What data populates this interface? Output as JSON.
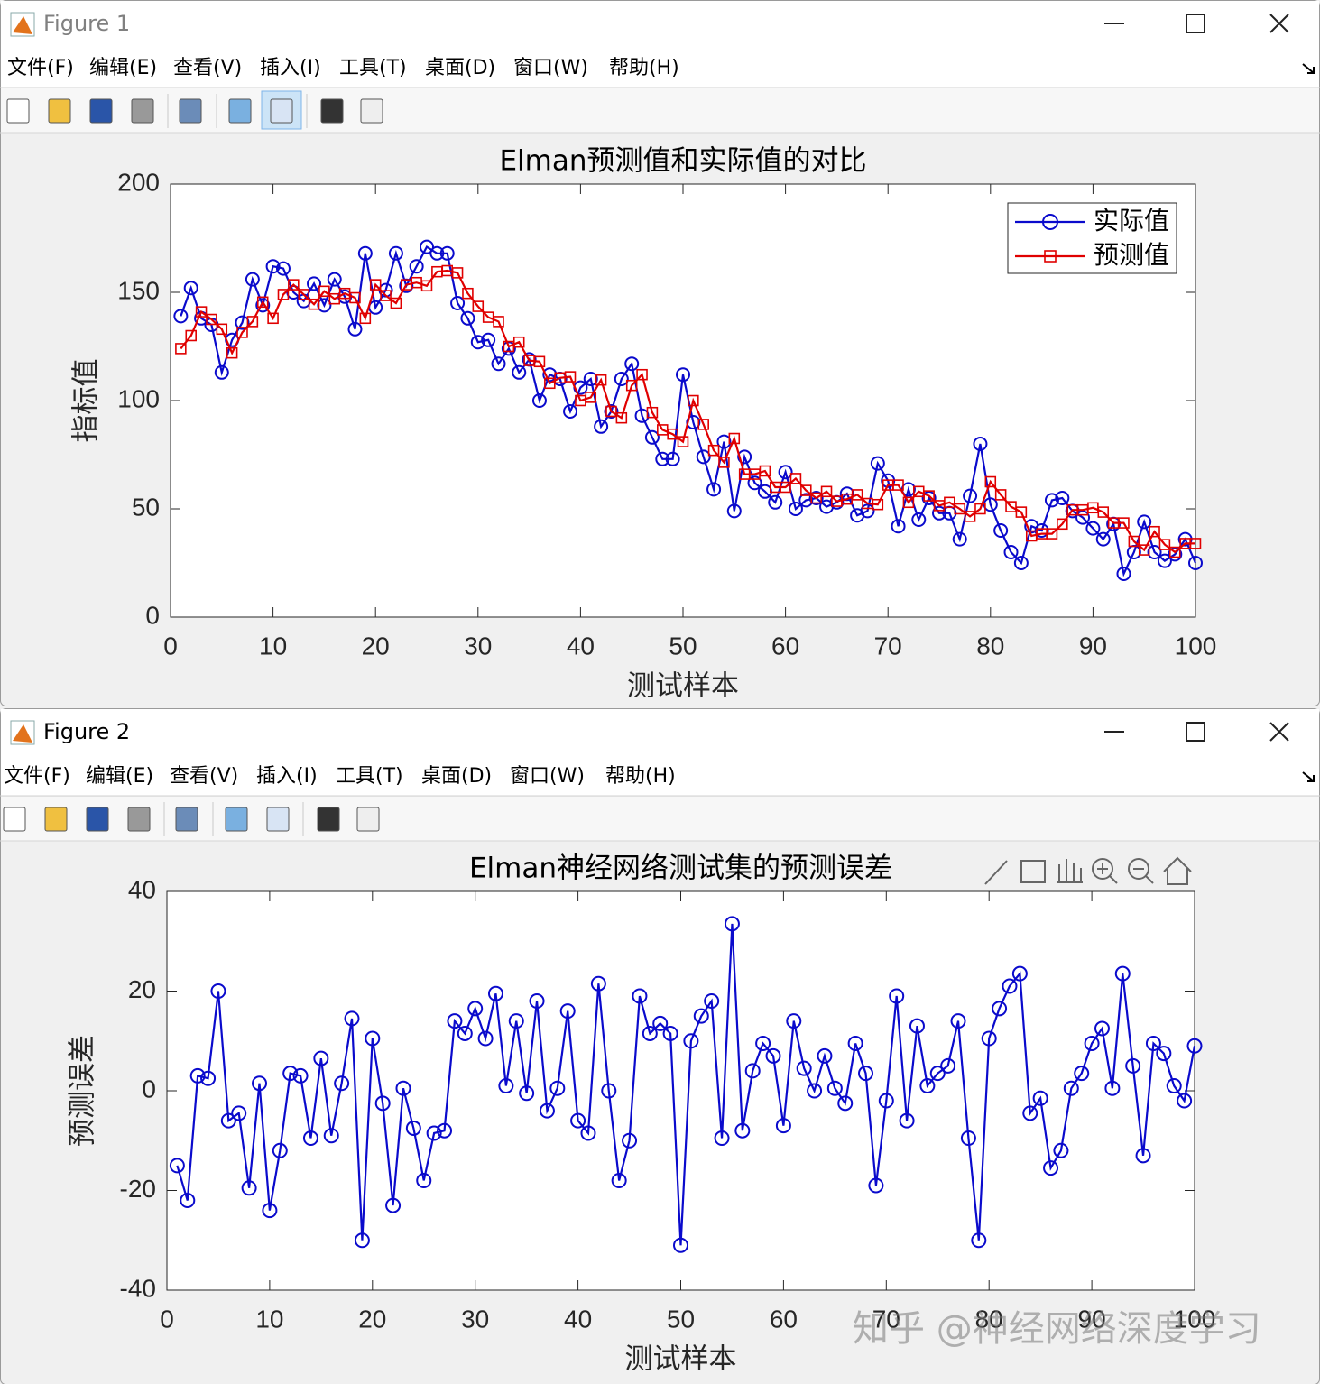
{
  "windows": [
    {
      "title": "Figure 1",
      "menu": [
        "文件(F)",
        "编辑(E)",
        "查看(V)",
        "插入(I)",
        "工具(T)",
        "桌面(D)",
        "窗口(W)",
        "帮助(H)"
      ]
    },
    {
      "title": "Figure 2",
      "menu": [
        "文件(F)",
        "编辑(E)",
        "查看(V)",
        "插入(I)",
        "工具(T)",
        "桌面(D)",
        "窗口(W)",
        "帮助(H)"
      ]
    }
  ],
  "chart_data": [
    {
      "type": "line",
      "title": "Elman预测值和实际值的对比",
      "xlabel": "测试样本",
      "ylabel": "指标值",
      "xlim": [
        0,
        100
      ],
      "xticks": [
        0,
        10,
        20,
        30,
        40,
        50,
        60,
        70,
        80,
        90,
        100
      ],
      "ylim": [
        0,
        200
      ],
      "yticks": [
        0,
        50,
        100,
        150,
        200
      ],
      "grid": false,
      "legend": "northeast",
      "x": [
        1,
        2,
        3,
        4,
        5,
        6,
        7,
        8,
        9,
        10,
        11,
        12,
        13,
        14,
        15,
        16,
        17,
        18,
        19,
        20,
        21,
        22,
        23,
        24,
        25,
        26,
        27,
        28,
        29,
        30,
        31,
        32,
        33,
        34,
        35,
        36,
        37,
        38,
        39,
        40,
        41,
        42,
        43,
        44,
        45,
        46,
        47,
        48,
        49,
        50,
        51,
        52,
        53,
        54,
        55,
        56,
        57,
        58,
        59,
        60,
        61,
        62,
        63,
        64,
        65,
        66,
        67,
        68,
        69,
        70,
        71,
        72,
        73,
        74,
        75,
        76,
        77,
        78,
        79,
        80,
        81,
        82,
        83,
        84,
        85,
        86,
        87,
        88,
        89,
        90,
        91,
        92,
        93,
        94,
        95,
        96,
        97,
        98,
        99,
        100
      ],
      "series": [
        {
          "name": "实际值",
          "color": "#0a0acc",
          "marker": "circle",
          "values": [
            139,
            152,
            138,
            135,
            113,
            128,
            136,
            156,
            144,
            162,
            161,
            150,
            146,
            154,
            144,
            156,
            148,
            133,
            168,
            143,
            151,
            168,
            153,
            162,
            171,
            168,
            168,
            145,
            138,
            127,
            128,
            117,
            124,
            113,
            119,
            100,
            112,
            110,
            95,
            106,
            110,
            88,
            95,
            110,
            117,
            93,
            83,
            73,
            73,
            112,
            90,
            74,
            59,
            81,
            49,
            74,
            62,
            58,
            53,
            67,
            50,
            54,
            55,
            51,
            53,
            57,
            47,
            49,
            71,
            63,
            42,
            59,
            45,
            55,
            48,
            48,
            36,
            56,
            80,
            52,
            40,
            30,
            25,
            42,
            40,
            54,
            55,
            49,
            46,
            41,
            36,
            43,
            20,
            30,
            44,
            30,
            26,
            29,
            36,
            25
          ]
        },
        {
          "name": "预测值",
          "color": "#e00000",
          "marker": "square",
          "values": [
            124,
            130,
            141,
            137.5,
            133,
            122,
            131.5,
            136.5,
            145.5,
            138,
            149,
            153.5,
            149,
            144.5,
            150.5,
            147,
            149.5,
            147.5,
            138,
            153.5,
            148.5,
            145,
            153.5,
            154.5,
            153,
            159.5,
            160,
            159,
            149.5,
            143.5,
            138.5,
            136.5,
            125,
            127,
            118.5,
            118,
            108,
            110.5,
            111,
            100,
            101.5,
            109.5,
            95,
            92,
            107,
            112,
            94.5,
            86.5,
            84.5,
            81,
            100,
            89,
            77,
            71.5,
            82.5,
            66,
            66,
            67.5,
            60,
            60,
            64,
            58.5,
            55,
            58,
            53.5,
            54.5,
            56.5,
            52.5,
            52,
            61,
            61,
            53,
            58,
            56,
            51.5,
            53,
            50,
            46.5,
            50,
            62.5,
            56.5,
            51,
            48.5,
            37.5,
            38.5,
            38.5,
            43,
            49.5,
            49.5,
            50.5,
            48.5,
            43.5,
            43.5,
            35,
            31,
            39.5,
            33.5,
            30,
            34,
            34
          ]
        }
      ]
    },
    {
      "type": "line",
      "title": "Elman神经网络测试集的预测误差",
      "xlabel": "测试样本",
      "ylabel": "预测误差",
      "xlim": [
        0,
        100
      ],
      "xticks": [
        0,
        10,
        20,
        30,
        40,
        50,
        60,
        70,
        80,
        90,
        100
      ],
      "ylim": [
        -40,
        40
      ],
      "yticks": [
        -40,
        -20,
        0,
        20,
        40
      ],
      "grid": false,
      "x": [
        1,
        2,
        3,
        4,
        5,
        6,
        7,
        8,
        9,
        10,
        11,
        12,
        13,
        14,
        15,
        16,
        17,
        18,
        19,
        20,
        21,
        22,
        23,
        24,
        25,
        26,
        27,
        28,
        29,
        30,
        31,
        32,
        33,
        34,
        35,
        36,
        37,
        38,
        39,
        40,
        41,
        42,
        43,
        44,
        45,
        46,
        47,
        48,
        49,
        50,
        51,
        52,
        53,
        54,
        55,
        56,
        57,
        58,
        59,
        60,
        61,
        62,
        63,
        64,
        65,
        66,
        67,
        68,
        69,
        70,
        71,
        72,
        73,
        74,
        75,
        76,
        77,
        78,
        79,
        80,
        81,
        82,
        83,
        84,
        85,
        86,
        87,
        88,
        89,
        90,
        91,
        92,
        93,
        94,
        95,
        96,
        97,
        98,
        99,
        100
      ],
      "color": "#0a0acc",
      "marker": "circle",
      "values": [
        -15,
        -22,
        3,
        2.5,
        20,
        -6,
        -4.5,
        -19.5,
        1.5,
        -24,
        -12,
        3.5,
        3,
        -9.5,
        6.5,
        -9,
        1.5,
        14.5,
        -30,
        10.5,
        -2.5,
        -23,
        0.5,
        -7.5,
        -18,
        -8.5,
        -8,
        14,
        11.5,
        16.5,
        10.5,
        19.5,
        1,
        14,
        -0.5,
        18,
        -4,
        0.5,
        16,
        -6,
        -8.5,
        21.5,
        0,
        -18,
        -10,
        19,
        11.5,
        13.5,
        11.5,
        -31,
        10,
        15,
        18,
        -9.5,
        33.5,
        -8,
        4,
        9.5,
        7,
        -7,
        14,
        4.5,
        0,
        7,
        0.5,
        -2.5,
        9.5,
        3.5,
        -19,
        -2,
        19,
        -6,
        13,
        1,
        3.5,
        5,
        14,
        -9.5,
        -30,
        10.5,
        16.5,
        21,
        23.5,
        -4.5,
        -1.5,
        -15.5,
        -12,
        0.5,
        3.5,
        9.5,
        12.5,
        0.5,
        23.5,
        5,
        -13,
        9.5,
        7.5,
        1,
        -2,
        9
      ]
    }
  ],
  "watermark": "知乎 @神经网络深度学习"
}
